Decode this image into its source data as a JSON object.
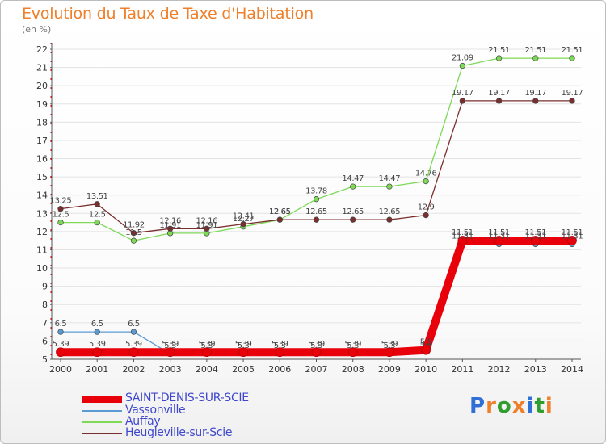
{
  "chart_data": {
    "type": "line",
    "title": "Evolution du Taux de Taxe d'Habitation",
    "subtitle": "(en %)",
    "ylim": [
      5,
      22
    ],
    "yticks": [
      5,
      6,
      7,
      8,
      9,
      10,
      11,
      12,
      13,
      14,
      15,
      16,
      17,
      18,
      19,
      20,
      21,
      22
    ],
    "x": [
      "2000",
      "2001",
      "2002",
      "2003",
      "2004",
      "2005",
      "2006",
      "2007",
      "2008",
      "2009",
      "2010",
      "2011",
      "2012",
      "2013",
      "2014"
    ],
    "grid": "horizontal",
    "legend_position": "bottom",
    "series": [
      {
        "name": "SAINT-DENIS-SUR-SCIE",
        "color": "#e8000b",
        "values": [
          5.39,
          5.39,
          5.39,
          5.39,
          5.39,
          5.39,
          5.39,
          5.39,
          5.39,
          5.39,
          5.5,
          11.51,
          11.51,
          11.51,
          11.51
        ],
        "labels": [
          "5.39",
          "5.39",
          "5.39",
          "5.39",
          "5.39",
          "5.39",
          "5.39",
          "5.39",
          "5.39",
          "5.39",
          "5.5",
          "11.51",
          "11.51",
          "11.51",
          "11.51"
        ]
      },
      {
        "name": "Vassonville",
        "color": "#5b9bd5",
        "values": [
          6.5,
          6.5,
          6.5,
          5.3,
          5.3,
          5.3,
          5.3,
          5.3,
          5.3,
          5.3,
          5.4,
          11.31,
          11.31,
          11.31,
          11.31
        ],
        "labels": [
          "6.5",
          "6.5",
          "6.5",
          "5.3",
          "5.3",
          "5.3",
          "5.3",
          "5.3",
          "5.3",
          "5.3",
          "5.4",
          "11.31",
          "11.31",
          "11.31",
          "11.31"
        ]
      },
      {
        "name": "Auffay",
        "color": "#7ed957",
        "values": [
          12.5,
          12.5,
          11.5,
          11.91,
          11.91,
          12.27,
          12.65,
          13.78,
          14.47,
          14.47,
          14.76,
          21.09,
          21.51,
          21.51,
          21.51
        ],
        "labels": [
          "12.5",
          "12.5",
          "11.5",
          "11.91",
          "11.91",
          "12.27",
          "12.65",
          "13.78",
          "14.47",
          "14.47",
          "14.76",
          "21.09",
          "21.51",
          "21.51",
          "21.51"
        ]
      },
      {
        "name": "Heugleville-sur-Scie",
        "color": "#7a2f2f",
        "values": [
          13.25,
          13.51,
          11.92,
          12.16,
          12.16,
          12.41,
          12.65,
          12.65,
          12.65,
          12.65,
          12.9,
          19.17,
          19.17,
          19.17,
          19.17
        ],
        "labels": [
          "13.25",
          "13.51",
          "11.92",
          "12.16",
          "12.16",
          "12.41",
          "12.65",
          "12.65",
          "12.65",
          "12.65",
          "12.9",
          "19.17",
          "19.17",
          "19.17",
          "19.17"
        ]
      }
    ]
  },
  "legend": {
    "items": [
      {
        "label": "SAINT-DENIS-SUR-SCIE",
        "color": "#e8000b"
      },
      {
        "label": "Vassonville",
        "color": "#5b9bd5"
      },
      {
        "label": "Auffay",
        "color": "#7ed957"
      },
      {
        "label": "Heugleville-sur-Scie",
        "color": "#7a2f2f"
      }
    ]
  },
  "brand": {
    "letters": [
      "P",
      "r",
      "o",
      "x",
      "i",
      "t",
      "i"
    ],
    "colors": [
      "#2f6fd6",
      "#f07f2a",
      "#2f9e2f",
      "#f07f2a",
      "#2f6fd6",
      "#2f9e2f",
      "#f07f2a"
    ]
  }
}
